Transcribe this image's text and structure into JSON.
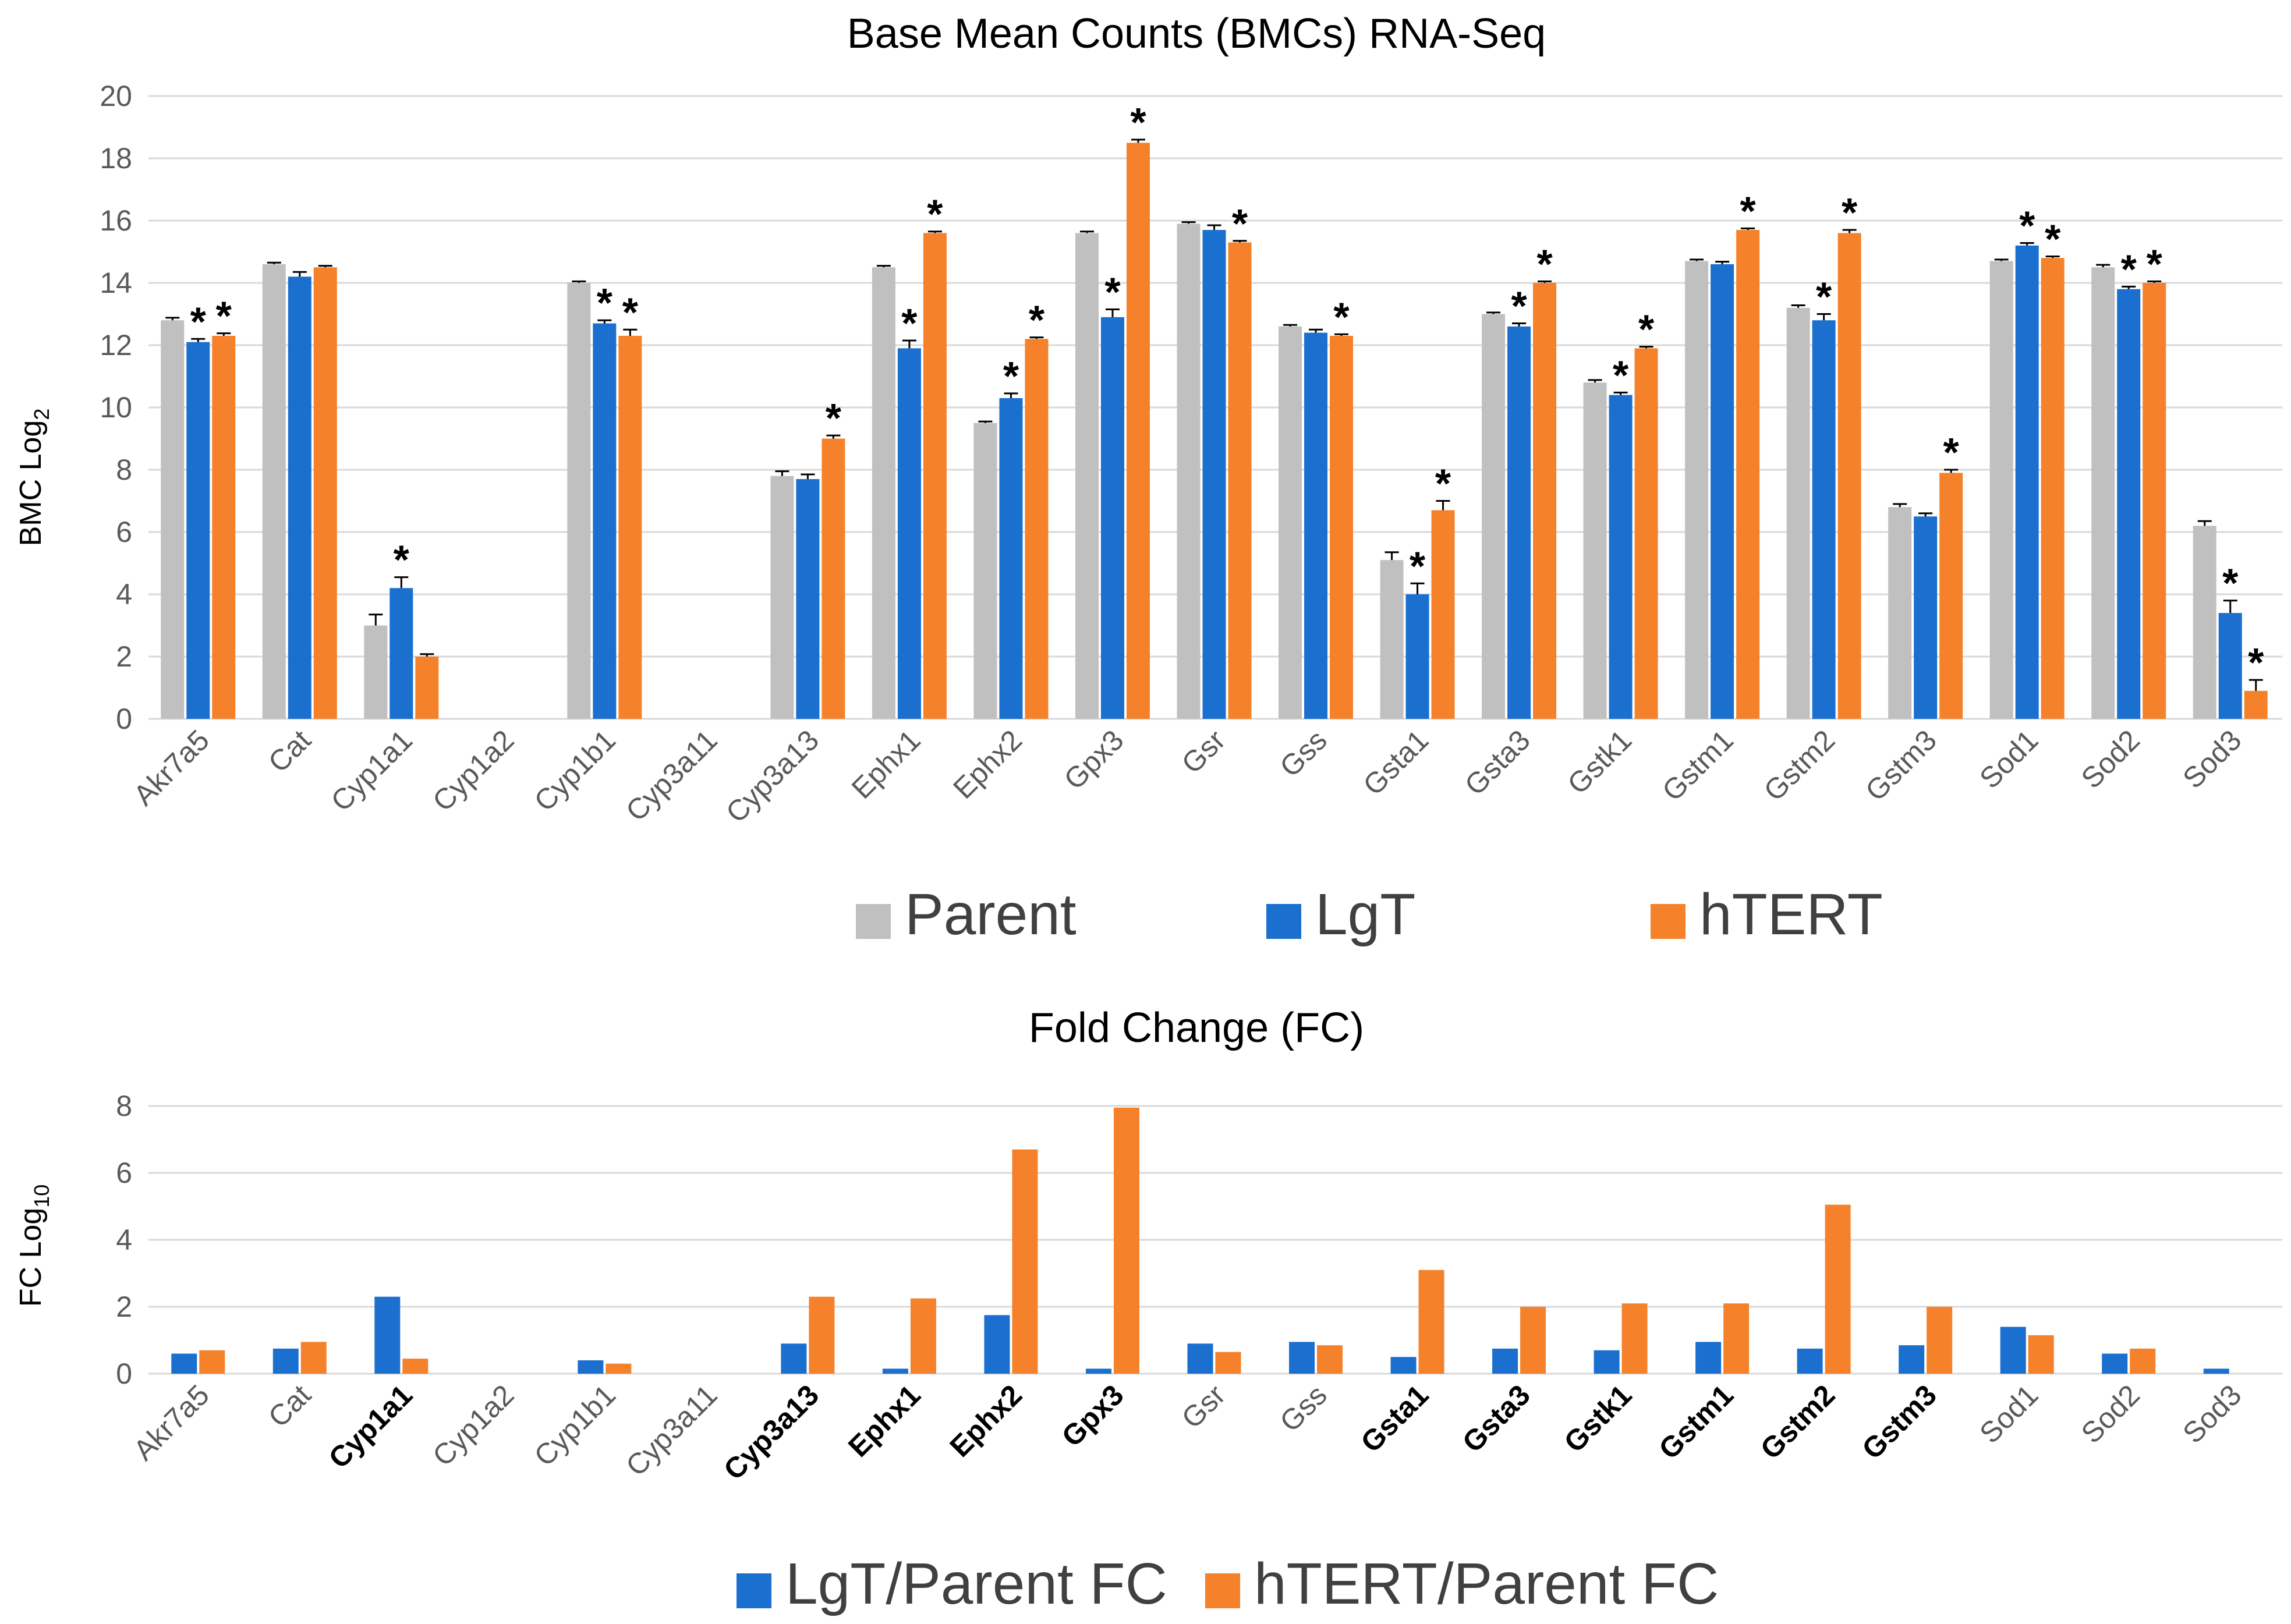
{
  "colors": {
    "parent": "#c0c0c0",
    "lgt": "#1a6fcf",
    "htert": "#f5822a",
    "grid": "#d9d9d9",
    "axis_text": "#595959",
    "title_text": "#404040",
    "label_text": "#000000"
  },
  "chart_data": [
    {
      "type": "bar",
      "title": "Base Mean Counts (BMCs) RNA-Seq",
      "ylabel_main": "BMC Log",
      "ylabel_sub": "2",
      "ylim": [
        0,
        20
      ],
      "yticks": [
        "0",
        "2",
        "4",
        "6",
        "8",
        "10",
        "12",
        "14",
        "16",
        "18",
        "20"
      ],
      "categories": [
        "Akr7a5",
        "Cat",
        "Cyp1a1",
        "Cyp1a2",
        "Cyp1b1",
        "Cyp3a11",
        "Cyp3a13",
        "Ephx1",
        "Ephx2",
        "Gpx3",
        "Gsr",
        "Gss",
        "Gsta1",
        "Gsta3",
        "Gstk1",
        "Gstm1",
        "Gstm2",
        "Gstm3",
        "Sod1",
        "Sod2",
        "Sod3"
      ],
      "legend_position": "bottom",
      "significance_marker": "*",
      "series": [
        {
          "name": "Parent",
          "values": [
            12.8,
            14.6,
            3.0,
            0,
            14.0,
            0,
            7.8,
            14.5,
            9.5,
            15.6,
            15.9,
            12.6,
            5.1,
            13.0,
            10.8,
            14.7,
            13.2,
            6.8,
            14.7,
            14.5,
            6.2
          ],
          "errors": [
            0.08,
            0.05,
            0.35,
            0,
            0.05,
            0,
            0.15,
            0.05,
            0.05,
            0.05,
            0.05,
            0.05,
            0.25,
            0.05,
            0.08,
            0.05,
            0.08,
            0.1,
            0.05,
            0.08,
            0.15
          ],
          "significant": [
            false,
            false,
            false,
            false,
            false,
            false,
            false,
            false,
            false,
            false,
            false,
            false,
            false,
            false,
            false,
            false,
            false,
            false,
            false,
            false,
            false
          ]
        },
        {
          "name": "LgT",
          "values": [
            12.1,
            14.2,
            4.2,
            0,
            12.7,
            0,
            7.7,
            11.9,
            10.3,
            12.9,
            15.7,
            12.4,
            4.0,
            12.6,
            10.4,
            14.6,
            12.8,
            6.5,
            15.2,
            13.8,
            3.4
          ],
          "errors": [
            0.1,
            0.15,
            0.35,
            0,
            0.1,
            0,
            0.15,
            0.25,
            0.15,
            0.25,
            0.15,
            0.1,
            0.35,
            0.1,
            0.08,
            0.08,
            0.2,
            0.1,
            0.08,
            0.08,
            0.4
          ],
          "significant": [
            true,
            false,
            true,
            false,
            true,
            false,
            false,
            true,
            true,
            true,
            false,
            false,
            true,
            true,
            true,
            false,
            true,
            false,
            true,
            true,
            true
          ]
        },
        {
          "name": "hTERT",
          "values": [
            12.3,
            14.5,
            2.0,
            0,
            12.3,
            0,
            9.0,
            15.6,
            12.2,
            18.5,
            15.3,
            12.3,
            6.7,
            14.0,
            11.9,
            15.7,
            15.6,
            7.9,
            14.8,
            14.0,
            0.9
          ],
          "errors": [
            0.08,
            0.05,
            0.08,
            0,
            0.2,
            0,
            0.1,
            0.05,
            0.05,
            0.1,
            0.05,
            0.05,
            0.3,
            0.05,
            0.05,
            0.05,
            0.1,
            0.1,
            0.05,
            0.05,
            0.35
          ],
          "significant": [
            true,
            false,
            false,
            false,
            true,
            false,
            true,
            true,
            true,
            true,
            true,
            true,
            true,
            true,
            true,
            true,
            true,
            true,
            true,
            true,
            true
          ]
        }
      ]
    },
    {
      "type": "bar",
      "title": "Fold Change (FC)",
      "ylabel_main": "FC  Log",
      "ylabel_sub": "10",
      "ylim": [
        0,
        8
      ],
      "yticks": [
        "0",
        "2",
        "4",
        "6",
        "8"
      ],
      "categories": [
        "Akr7a5",
        "Cat",
        "Cyp1a1",
        "Cyp1a2",
        "Cyp1b1",
        "Cyp3a11",
        "Cyp3a13",
        "Ephx1",
        "Ephx2",
        "Gpx3",
        "Gsr",
        "Gss",
        "Gsta1",
        "Gsta3",
        "Gstk1",
        "Gstm1",
        "Gstm2",
        "Gstm3",
        "Sod1",
        "Sod2",
        "Sod3"
      ],
      "bold_categories": [
        "Cyp1a1",
        "Cyp3a13",
        "Ephx1",
        "Ephx2",
        "Gpx3",
        "Gsta1",
        "Gsta3",
        "Gstk1",
        "Gstm1",
        "Gstm2",
        "Gstm3"
      ],
      "legend_position": "bottom",
      "series": [
        {
          "name": "LgT/Parent FC",
          "values": [
            0.6,
            0.75,
            2.3,
            0,
            0.4,
            0,
            0.9,
            0.15,
            1.75,
            0.15,
            0.9,
            0.95,
            0.5,
            0.75,
            0.7,
            0.95,
            0.75,
            0.85,
            1.4,
            0.6,
            0.15
          ]
        },
        {
          "name": "hTERT/Parent FC",
          "values": [
            0.7,
            0.95,
            0.45,
            0,
            0.3,
            0,
            2.3,
            2.25,
            6.7,
            7.95,
            0.65,
            0.85,
            3.1,
            2.0,
            2.1,
            2.1,
            5.05,
            2.0,
            1.15,
            0.75,
            0
          ]
        }
      ]
    }
  ]
}
